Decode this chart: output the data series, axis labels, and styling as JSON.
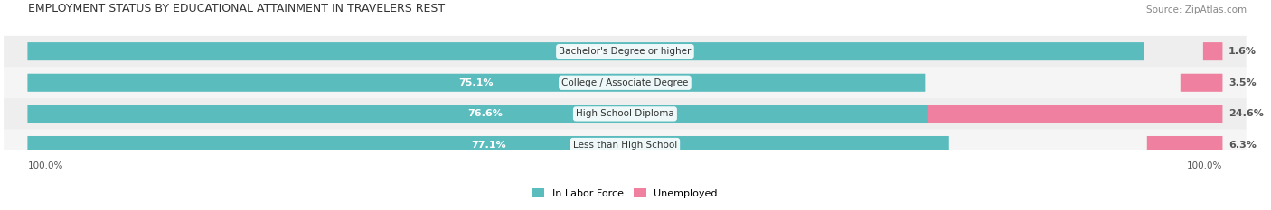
{
  "title": "EMPLOYMENT STATUS BY EDUCATIONAL ATTAINMENT IN TRAVELERS REST",
  "source": "Source: ZipAtlas.com",
  "categories": [
    "Less than High School",
    "High School Diploma",
    "College / Associate Degree",
    "Bachelor's Degree or higher"
  ],
  "in_labor_force": [
    77.1,
    76.6,
    75.1,
    93.4
  ],
  "unemployed": [
    6.3,
    24.6,
    3.5,
    1.6
  ],
  "labor_force_color": "#5bbcbe",
  "unemployed_color": "#f080a0",
  "bar_bg_color": "#e8e8e8",
  "row_bg_colors": [
    "#f5f5f5",
    "#eeeeee"
  ],
  "label_color_lf": "#ffffff",
  "label_color_unemp": "#555555",
  "axis_label_left": "100.0%",
  "axis_label_right": "100.0%",
  "legend_lf": "In Labor Force",
  "legend_unemp": "Unemployed",
  "title_fontsize": 9,
  "source_fontsize": 7.5,
  "bar_label_fontsize": 8,
  "category_label_fontsize": 7.5,
  "legend_fontsize": 8,
  "axis_fontsize": 7.5
}
